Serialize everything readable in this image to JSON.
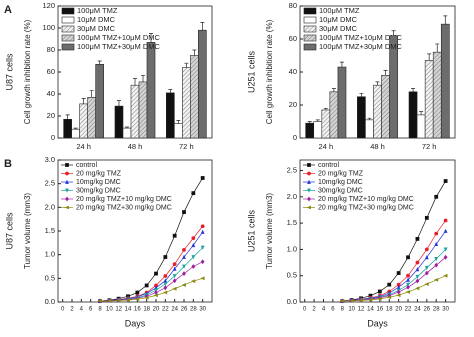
{
  "chart_data": [
    {
      "type": "bar",
      "panel_label": "A",
      "cell_line": "U87 cells",
      "y_label": "Cell growth inhibition rate (%)",
      "categories": [
        "24 h",
        "48 h",
        "72 h"
      ],
      "ylim": [
        0,
        120
      ],
      "yticks": [
        0,
        20,
        40,
        60,
        80,
        100,
        120
      ],
      "series": [
        {
          "name": "100μM TMZ",
          "color": "#111111",
          "values": [
            17,
            29,
            41
          ],
          "errors": [
            4,
            5,
            3
          ]
        },
        {
          "name": "10μM DMC",
          "color": "#ffffff",
          "values": [
            8,
            9,
            13
          ],
          "errors": [
            1,
            1,
            3
          ]
        },
        {
          "name": "30μM DMC",
          "color": "#f2f2f2",
          "values": [
            31,
            48,
            64
          ],
          "errors": [
            5,
            6,
            4
          ]
        },
        {
          "name": "100μM TMZ+10μM DMC",
          "color": "#d4d4d4",
          "values": [
            37,
            51,
            75
          ],
          "errors": [
            6,
            6,
            5
          ]
        },
        {
          "name": "100μM TMZ+30μM DMC",
          "color": "#6e6e6e",
          "values": [
            67,
            87,
            98
          ],
          "errors": [
            3,
            8,
            7
          ]
        }
      ]
    },
    {
      "type": "bar",
      "cell_line": "U251 cells",
      "y_label": "Cell growth inhibition rate (%)",
      "categories": [
        "24 h",
        "48 h",
        "72 h"
      ],
      "ylim": [
        0,
        80
      ],
      "yticks": [
        0,
        20,
        40,
        60,
        80
      ],
      "series": [
        {
          "name": "100μM TMZ",
          "color": "#111111",
          "values": [
            9,
            25,
            28
          ],
          "errors": [
            1,
            2,
            2
          ]
        },
        {
          "name": "10μM DMC",
          "color": "#ffffff",
          "values": [
            10,
            11,
            14
          ],
          "errors": [
            1,
            1,
            2
          ]
        },
        {
          "name": "30μM DMC",
          "color": "#f2f2f2",
          "values": [
            17,
            32,
            47
          ],
          "errors": [
            1,
            2,
            4
          ]
        },
        {
          "name": "100μM TMZ+10μM DMC",
          "color": "#d4d4d4",
          "values": [
            28,
            38,
            52
          ],
          "errors": [
            2,
            3,
            5
          ]
        },
        {
          "name": "100μM TMZ+30μM DMC",
          "color": "#6e6e6e",
          "values": [
            43,
            62,
            69
          ],
          "errors": [
            3,
            3,
            5
          ]
        }
      ]
    },
    {
      "type": "line",
      "panel_label": "B",
      "cell_line": "U87 cells",
      "y_label": "Tumor volume (mm3)",
      "x_label": "Days",
      "x": [
        8,
        10,
        12,
        14,
        16,
        18,
        20,
        22,
        24,
        26,
        28,
        30
      ],
      "xlim": [
        -1,
        32
      ],
      "xticks": [
        0,
        2,
        4,
        6,
        8,
        10,
        12,
        14,
        16,
        18,
        20,
        22,
        24,
        26,
        28,
        30
      ],
      "ylim": [
        0,
        3
      ],
      "yticks": [
        {
          "value": 0,
          "label": "0.0"
        },
        0.5,
        {
          "value": 1,
          "label": "1.0"
        },
        1.5,
        {
          "value": 2,
          "label": "2.0"
        },
        2.5,
        {
          "value": 3,
          "label": "3.0"
        }
      ],
      "series": [
        {
          "name": "control",
          "color": "#111111",
          "marker": "square",
          "values": [
            0.02,
            0.04,
            0.07,
            0.12,
            0.2,
            0.35,
            0.6,
            0.95,
            1.4,
            1.9,
            2.3,
            2.62
          ]
        },
        {
          "name": "20 mg/kg TMZ",
          "color": "#e8202a",
          "marker": "circle",
          "values": [
            0.02,
            0.03,
            0.05,
            0.08,
            0.12,
            0.2,
            0.35,
            0.55,
            0.8,
            1.1,
            1.35,
            1.6
          ]
        },
        {
          "name": "10mg/kg DMC",
          "color": "#2233dd",
          "marker": "triangle",
          "values": [
            0.02,
            0.03,
            0.05,
            0.07,
            0.11,
            0.18,
            0.3,
            0.45,
            0.7,
            0.95,
            1.2,
            1.48
          ]
        },
        {
          "name": "30mg/kg DMC",
          "color": "#1aa3a3",
          "marker": "down",
          "values": [
            0.02,
            0.03,
            0.04,
            0.06,
            0.09,
            0.15,
            0.25,
            0.38,
            0.55,
            0.75,
            0.95,
            1.15
          ]
        },
        {
          "name": "20 mg/kg TMZ+10 mg/kg DMC",
          "color": "#a020a0",
          "marker": "diamond",
          "values": [
            0.02,
            0.03,
            0.04,
            0.05,
            0.08,
            0.12,
            0.2,
            0.3,
            0.45,
            0.6,
            0.75,
            0.85
          ]
        },
        {
          "name": "20 mg/kg TMZ+30 mg/kg DMC",
          "color": "#8a8a10",
          "marker": "left",
          "values": [
            0.02,
            0.02,
            0.03,
            0.04,
            0.06,
            0.09,
            0.14,
            0.2,
            0.28,
            0.36,
            0.44,
            0.5
          ]
        }
      ]
    },
    {
      "type": "line",
      "cell_line": "U251 cells",
      "y_label": "Tumor volume (mm3)",
      "x_label": "Days",
      "x": [
        8,
        10,
        12,
        14,
        16,
        18,
        20,
        22,
        24,
        26,
        28,
        30
      ],
      "xlim": [
        -1,
        32
      ],
      "xticks": [
        0,
        2,
        4,
        6,
        8,
        10,
        12,
        14,
        16,
        18,
        20,
        22,
        24,
        26,
        28,
        30
      ],
      "ylim": [
        0,
        2.7
      ],
      "yticks": [
        {
          "value": 0,
          "label": "0.0"
        },
        0.5,
        {
          "value": 1,
          "label": "1.0"
        },
        1.5,
        {
          "value": 2,
          "label": "2.0"
        },
        2.5
      ],
      "series": [
        {
          "name": "control",
          "color": "#111111",
          "marker": "square",
          "values": [
            0.02,
            0.04,
            0.07,
            0.12,
            0.2,
            0.33,
            0.55,
            0.85,
            1.2,
            1.6,
            2.0,
            2.3
          ]
        },
        {
          "name": "20 mg/kg TMZ",
          "color": "#e8202a",
          "marker": "circle",
          "values": [
            0.02,
            0.03,
            0.05,
            0.08,
            0.12,
            0.2,
            0.33,
            0.5,
            0.75,
            1.0,
            1.3,
            1.55
          ]
        },
        {
          "name": "10mg/kg DMC",
          "color": "#2233dd",
          "marker": "triangle",
          "values": [
            0.02,
            0.03,
            0.05,
            0.07,
            0.1,
            0.17,
            0.28,
            0.42,
            0.62,
            0.85,
            1.1,
            1.35
          ]
        },
        {
          "name": "30mg/kg DMC",
          "color": "#1aa3a3",
          "marker": "down",
          "values": [
            0.02,
            0.03,
            0.04,
            0.06,
            0.09,
            0.14,
            0.22,
            0.33,
            0.48,
            0.65,
            0.82,
            1.0
          ]
        },
        {
          "name": "20 mg/kg TMZ+10 mg/kg DMC",
          "color": "#a020a0",
          "marker": "diamond",
          "values": [
            0.02,
            0.03,
            0.04,
            0.05,
            0.08,
            0.12,
            0.19,
            0.28,
            0.4,
            0.55,
            0.7,
            0.85
          ]
        },
        {
          "name": "20 mg/kg TMZ+30 mg/kg DMC",
          "color": "#8a8a10",
          "marker": "left",
          "values": [
            0.02,
            0.02,
            0.03,
            0.04,
            0.06,
            0.09,
            0.13,
            0.19,
            0.26,
            0.34,
            0.42,
            0.5
          ]
        }
      ]
    }
  ]
}
